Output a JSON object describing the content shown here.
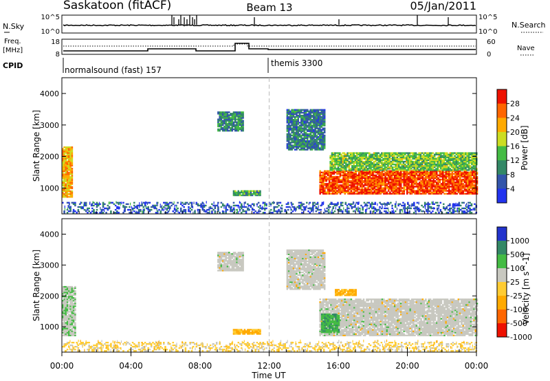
{
  "header": {
    "station": "Saskatoon (fitACF)",
    "beam": "Beam 13",
    "date": "05/Jan/2011"
  },
  "noise_panel": {
    "left_label": "N.Sky",
    "right_label": "N.Search",
    "left_ticks": [
      "10^5",
      "10^0"
    ],
    "right_ticks": [
      "10^5",
      "10^0"
    ]
  },
  "freq_panel": {
    "left_label_1": "Freq.",
    "left_label_2": "[MHz]",
    "right_label": "Nave",
    "left_ticks": [
      "18",
      "8"
    ],
    "right_ticks": [
      "60",
      "0"
    ]
  },
  "cpid": {
    "label": "CPID",
    "program_1": "normalsound (fast) 157",
    "program_2": "themis 3300"
  },
  "x_axis": {
    "title": "Time UT",
    "ticks": [
      "00:00",
      "04:00",
      "08:00",
      "12:00",
      "16:00",
      "20:00",
      "00:00"
    ]
  },
  "power_panel": {
    "ylabel": "Slant Range [km]",
    "yticks": [
      "1000",
      "2000",
      "3000",
      "4000"
    ],
    "colorbar_label": "Power [dB]",
    "colorbar_ticks": [
      "4",
      "8",
      "12",
      "16",
      "20",
      "24",
      "28"
    ],
    "colors": [
      "#2233ee",
      "#3355aa",
      "#338866",
      "#44bb44",
      "#ccdd22",
      "#ffaa00",
      "#ff6600",
      "#ee1100"
    ]
  },
  "velocity_panel": {
    "ylabel": "Slant Range [km]",
    "yticks": [
      "1000",
      "2000",
      "3000",
      "4000"
    ],
    "colorbar_label": "Velocity [m s^-1]",
    "colorbar_ticks": [
      "1000",
      "500",
      "100",
      "25",
      "-25",
      "-100",
      "-500",
      "-1000"
    ],
    "colors": [
      "#2233cc",
      "#338866",
      "#44bb44",
      "#c8c8c0",
      "#ffcc33",
      "#ffaa00",
      "#ff6600",
      "#ee1100"
    ]
  },
  "chart_data": [
    {
      "type": "heatmap",
      "title": "Power",
      "xlabel": "Time UT",
      "ylabel": "Slant Range [km]",
      "xlim": [
        0,
        24
      ],
      "ylim": [
        180,
        4500
      ],
      "colorbar_range_dB": [
        0,
        30
      ],
      "regions": [
        {
          "t": [
            0.0,
            0.6
          ],
          "range": [
            700,
            2300
          ],
          "level_dB": 20
        },
        {
          "t": [
            9.9,
            11.5
          ],
          "range": [
            750,
            900
          ],
          "level_dB": 12
        },
        {
          "t": [
            14.9,
            24.0
          ],
          "range": [
            800,
            1550
          ],
          "level_dB": 26
        },
        {
          "t": [
            15.5,
            24.0
          ],
          "range": [
            1550,
            2100
          ],
          "level_dB": 14
        },
        {
          "t": [
            9.0,
            10.5
          ],
          "range": [
            2800,
            3400
          ],
          "level_dB": 10
        },
        {
          "t": [
            13.0,
            15.2
          ],
          "range": [
            2200,
            3500
          ],
          "level_dB": 8
        },
        {
          "t": [
            0.0,
            24.0
          ],
          "range": [
            200,
            550
          ],
          "level_dB": 6
        }
      ]
    },
    {
      "type": "heatmap",
      "title": "Velocity",
      "xlabel": "Time UT",
      "ylabel": "Slant Range [km]",
      "xlim": [
        0,
        24
      ],
      "ylim": [
        180,
        4500
      ],
      "colorbar_range_ms": [
        -1000,
        1000
      ],
      "regions": [
        {
          "t": [
            0.0,
            0.8
          ],
          "range": [
            700,
            2300
          ],
          "velocity_ms": 60
        },
        {
          "t": [
            9.9,
            11.5
          ],
          "range": [
            750,
            900
          ],
          "velocity_ms": -150
        },
        {
          "t": [
            14.9,
            24.0
          ],
          "range": [
            700,
            1900
          ],
          "velocity_ms": 0
        },
        {
          "t": [
            15.0,
            16.0
          ],
          "range": [
            800,
            1400
          ],
          "velocity_ms": 120
        },
        {
          "t": [
            15.8,
            17.0
          ],
          "range": [
            2000,
            2200
          ],
          "velocity_ms": -150
        },
        {
          "t": [
            9.0,
            10.5
          ],
          "range": [
            2800,
            3400
          ],
          "velocity_ms": 0
        },
        {
          "t": [
            13.0,
            15.2
          ],
          "range": [
            2200,
            3500
          ],
          "velocity_ms": 0
        },
        {
          "t": [
            0.0,
            24.0
          ],
          "range": [
            200,
            500
          ],
          "velocity_ms": -60
        }
      ]
    }
  ]
}
